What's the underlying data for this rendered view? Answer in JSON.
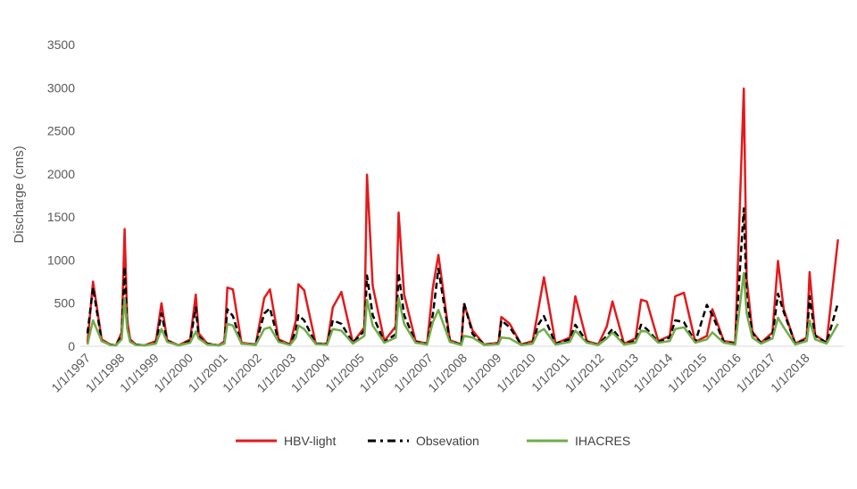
{
  "chart_data": {
    "type": "line",
    "title": "",
    "xlabel": "",
    "ylabel": "Discharge (cms)",
    "ylim": [
      0,
      3500
    ],
    "yticks": [
      "0",
      "500",
      "1000",
      "1500",
      "2000",
      "2500",
      "3000",
      "3500"
    ],
    "xlim": [
      "1997-01-01",
      "2019-01-01"
    ],
    "xtick_labels": [
      "1/1/1997",
      "1/1/1998",
      "1/1/1999",
      "1/1/2000",
      "1/1/2001",
      "1/1/2002",
      "1/1/2003",
      "1/1/2004",
      "1/1/2005",
      "1/1/2006",
      "1/1/2007",
      "1/1/2008",
      "1/1/2009",
      "1/1/2010",
      "1/1/2011",
      "1/1/2012",
      "1/1/2013",
      "1/1/2014",
      "1/1/2015",
      "1/1/2016",
      "1/1/2017",
      "1/1/2018"
    ],
    "grid": false,
    "legend_position": "bottom",
    "series": [
      {
        "name": "HBV-light",
        "color": "#e31a1c",
        "style": "solid",
        "x": [
          "1997-01-01",
          "1997-03-01",
          "1997-06-01",
          "1997-09-01",
          "1997-11-01",
          "1998-01-01",
          "1998-02-01",
          "1998-03-01",
          "1998-04-01",
          "1998-06-01",
          "1998-09-01",
          "1999-01-01",
          "1999-03-01",
          "1999-05-01",
          "1999-09-01",
          "2000-01-01",
          "2000-03-01",
          "2000-04-01",
          "2000-07-01",
          "2000-11-01",
          "2001-01-01",
          "2001-02-01",
          "2001-04-01",
          "2001-07-01",
          "2001-12-01",
          "2002-03-01",
          "2002-05-01",
          "2002-08-01",
          "2002-12-01",
          "2003-02-01",
          "2003-03-01",
          "2003-05-01",
          "2003-09-01",
          "2004-01-01",
          "2004-03-01",
          "2004-06-01",
          "2004-10-01",
          "2005-02-01",
          "2005-03-01",
          "2005-05-01",
          "2005-09-01",
          "2006-01-01",
          "2006-02-01",
          "2006-04-01",
          "2006-08-01",
          "2006-12-01",
          "2007-02-01",
          "2007-04-01",
          "2007-08-01",
          "2007-12-01",
          "2008-01-01",
          "2008-04-01",
          "2008-08-01",
          "2009-01-01",
          "2009-02-01",
          "2009-05-01",
          "2009-09-01",
          "2010-01-01",
          "2010-03-01",
          "2010-05-01",
          "2010-09-01",
          "2011-02-01",
          "2011-04-01",
          "2011-08-01",
          "2011-12-01",
          "2012-03-01",
          "2012-05-01",
          "2012-09-01",
          "2013-01-01",
          "2013-03-01",
          "2013-05-01",
          "2013-09-01",
          "2014-01-01",
          "2014-03-01",
          "2014-06-01",
          "2014-10-01",
          "2015-02-01",
          "2015-04-01",
          "2015-08-01",
          "2015-12-01",
          "2016-03-01",
          "2016-04-01",
          "2016-06-01",
          "2016-09-01",
          "2017-01-01",
          "2017-03-01",
          "2017-05-01",
          "2017-09-01",
          "2018-01-01",
          "2018-02-01",
          "2018-04-01",
          "2018-08-01",
          "2018-12-01"
        ],
        "y": [
          40,
          750,
          80,
          20,
          10,
          160,
          1360,
          300,
          80,
          20,
          10,
          60,
          500,
          70,
          10,
          80,
          600,
          150,
          30,
          10,
          60,
          680,
          660,
          40,
          20,
          560,
          660,
          80,
          20,
          300,
          720,
          650,
          30,
          30,
          450,
          630,
          40,
          220,
          1990,
          700,
          60,
          230,
          1550,
          600,
          60,
          30,
          680,
          1060,
          70,
          20,
          490,
          180,
          20,
          40,
          340,
          260,
          20,
          60,
          420,
          800,
          30,
          100,
          580,
          60,
          20,
          230,
          520,
          30,
          90,
          540,
          520,
          60,
          120,
          580,
          620,
          50,
          120,
          430,
          60,
          40,
          2990,
          780,
          170,
          40,
          160,
          990,
          430,
          30,
          100,
          860,
          130,
          40,
          1240
        ]
      },
      {
        "name": "Obsevation",
        "color": "#000000",
        "style": "dashed",
        "x": [
          "1997-01-01",
          "1997-03-01",
          "1997-06-01",
          "1997-09-01",
          "1997-11-01",
          "1998-01-01",
          "1998-02-01",
          "1998-03-01",
          "1998-04-01",
          "1998-06-01",
          "1998-09-01",
          "1999-01-01",
          "1999-03-01",
          "1999-05-01",
          "1999-09-01",
          "2000-01-01",
          "2000-03-01",
          "2000-04-01",
          "2000-07-01",
          "2000-11-01",
          "2001-01-01",
          "2001-02-01",
          "2001-04-01",
          "2001-07-01",
          "2001-12-01",
          "2002-03-01",
          "2002-05-01",
          "2002-08-01",
          "2002-12-01",
          "2003-02-01",
          "2003-03-01",
          "2003-05-01",
          "2003-09-01",
          "2004-01-01",
          "2004-03-01",
          "2004-06-01",
          "2004-10-01",
          "2005-02-01",
          "2005-03-01",
          "2005-05-01",
          "2005-09-01",
          "2006-01-01",
          "2006-02-01",
          "2006-04-01",
          "2006-08-01",
          "2006-12-01",
          "2007-02-01",
          "2007-04-01",
          "2007-08-01",
          "2007-12-01",
          "2008-01-01",
          "2008-04-01",
          "2008-08-01",
          "2009-01-01",
          "2009-02-01",
          "2009-05-01",
          "2009-09-01",
          "2010-01-01",
          "2010-03-01",
          "2010-05-01",
          "2010-09-01",
          "2011-02-01",
          "2011-04-01",
          "2011-08-01",
          "2011-12-01",
          "2012-03-01",
          "2012-05-01",
          "2012-09-01",
          "2013-01-01",
          "2013-03-01",
          "2013-05-01",
          "2013-09-01",
          "2014-01-01",
          "2014-03-01",
          "2014-06-01",
          "2014-10-01",
          "2015-02-01",
          "2015-04-01",
          "2015-08-01",
          "2015-12-01",
          "2016-03-01",
          "2016-04-01",
          "2016-06-01",
          "2016-09-01",
          "2017-01-01",
          "2017-03-01",
          "2017-05-01",
          "2017-09-01",
          "2018-01-01",
          "2018-02-01",
          "2018-04-01",
          "2018-08-01",
          "2018-12-01"
        ],
        "y": [
          150,
          680,
          60,
          20,
          10,
          120,
          920,
          220,
          60,
          20,
          10,
          40,
          380,
          60,
          10,
          60,
          450,
          110,
          30,
          10,
          50,
          430,
          350,
          30,
          20,
          380,
          440,
          60,
          20,
          180,
          360,
          300,
          30,
          30,
          300,
          260,
          40,
          180,
          820,
          360,
          50,
          140,
          850,
          360,
          50,
          30,
          370,
          900,
          60,
          20,
          500,
          140,
          20,
          30,
          300,
          220,
          20,
          40,
          250,
          350,
          30,
          80,
          250,
          50,
          20,
          120,
          200,
          30,
          60,
          250,
          200,
          50,
          100,
          300,
          280,
          50,
          480,
          360,
          50,
          30,
          1600,
          560,
          150,
          40,
          120,
          610,
          400,
          30,
          80,
          580,
          120,
          40,
          500
        ]
      },
      {
        "name": "IHACRES",
        "color": "#70ad47",
        "style": "solid",
        "x": [
          "1997-01-01",
          "1997-03-01",
          "1997-06-01",
          "1997-09-01",
          "1997-11-01",
          "1998-01-01",
          "1998-02-01",
          "1998-03-01",
          "1998-04-01",
          "1998-06-01",
          "1998-09-01",
          "1999-01-01",
          "1999-03-01",
          "1999-05-01",
          "1999-09-01",
          "2000-01-01",
          "2000-03-01",
          "2000-04-01",
          "2000-07-01",
          "2000-11-01",
          "2001-01-01",
          "2001-02-01",
          "2001-04-01",
          "2001-07-01",
          "2001-12-01",
          "2002-03-01",
          "2002-05-01",
          "2002-08-01",
          "2002-12-01",
          "2003-02-01",
          "2003-03-01",
          "2003-05-01",
          "2003-09-01",
          "2004-01-01",
          "2004-03-01",
          "2004-06-01",
          "2004-10-01",
          "2005-02-01",
          "2005-03-01",
          "2005-05-01",
          "2005-09-01",
          "2006-01-01",
          "2006-02-01",
          "2006-04-01",
          "2006-08-01",
          "2006-12-01",
          "2007-02-01",
          "2007-04-01",
          "2007-08-01",
          "2007-12-01",
          "2008-01-01",
          "2008-04-01",
          "2008-08-01",
          "2009-01-01",
          "2009-02-01",
          "2009-05-01",
          "2009-09-01",
          "2010-01-01",
          "2010-03-01",
          "2010-05-01",
          "2010-09-01",
          "2011-02-01",
          "2011-04-01",
          "2011-08-01",
          "2011-12-01",
          "2012-03-01",
          "2012-05-01",
          "2012-09-01",
          "2013-01-01",
          "2013-03-01",
          "2013-05-01",
          "2013-09-01",
          "2014-01-01",
          "2014-03-01",
          "2014-06-01",
          "2014-10-01",
          "2015-02-01",
          "2015-04-01",
          "2015-08-01",
          "2015-12-01",
          "2016-03-01",
          "2016-04-01",
          "2016-06-01",
          "2016-09-01",
          "2017-01-01",
          "2017-03-01",
          "2017-05-01",
          "2017-09-01",
          "2018-01-01",
          "2018-02-01",
          "2018-04-01",
          "2018-08-01",
          "2018-12-01"
        ],
        "y": [
          20,
          300,
          60,
          15,
          10,
          80,
          560,
          200,
          50,
          15,
          10,
          30,
          200,
          50,
          10,
          40,
          170,
          90,
          20,
          10,
          30,
          260,
          240,
          30,
          15,
          200,
          220,
          50,
          15,
          100,
          240,
          200,
          25,
          20,
          200,
          180,
          30,
          120,
          540,
          240,
          40,
          100,
          560,
          260,
          40,
          20,
          280,
          420,
          50,
          15,
          120,
          100,
          15,
          25,
          100,
          90,
          15,
          30,
          160,
          200,
          20,
          50,
          180,
          40,
          15,
          90,
          160,
          20,
          40,
          180,
          170,
          40,
          60,
          200,
          220,
          40,
          80,
          160,
          40,
          20,
          850,
          380,
          100,
          30,
          90,
          330,
          220,
          20,
          60,
          300,
          80,
          30,
          260
        ]
      }
    ]
  }
}
